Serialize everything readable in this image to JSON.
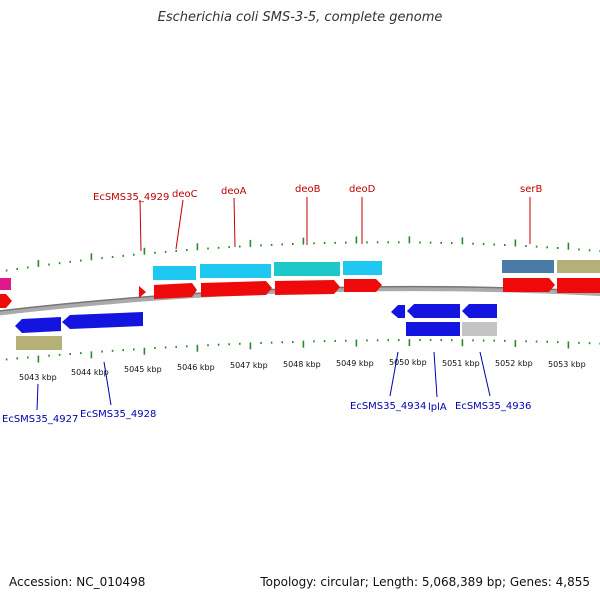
{
  "title": "Escherichia coli SMS-3-5, complete genome",
  "footer": {
    "accession": "Accession: NC_010498",
    "topology": "Topology: circular; Length: 5,068,389 bp; Genes: 4,855"
  },
  "colors": {
    "forward_label": "#c00000",
    "reverse_label": "#0000b0",
    "cds": "#ee0a0a",
    "cyan": "#1ec8f0",
    "teal": "#1ec8c8",
    "blue_gene": "#1414e0",
    "khaki": "#b4b078",
    "steel": "#4a7aa8",
    "gray": "#c4c4c4",
    "magenta": "#e0188c",
    "tick": "#2a8a2a",
    "backbone": "#888888"
  },
  "kbp_labels": [
    "5043 kbp",
    "5044 kbp",
    "5045 kbp",
    "5046 kbp",
    "5047 kbp",
    "5048 kbp",
    "5049 kbp",
    "5050 kbp",
    "5051 kbp",
    "5052 kbp",
    "5053 kbp"
  ],
  "top_labels": [
    "EcSMS35_4929",
    "deoC",
    "deoA",
    "deoB",
    "deoD",
    "serB"
  ],
  "bottom_labels": [
    "EcSMS35_4927",
    "EcSMS35_4928",
    "EcSMS35_4934",
    "lplA",
    "EcSMS35_4936"
  ]
}
